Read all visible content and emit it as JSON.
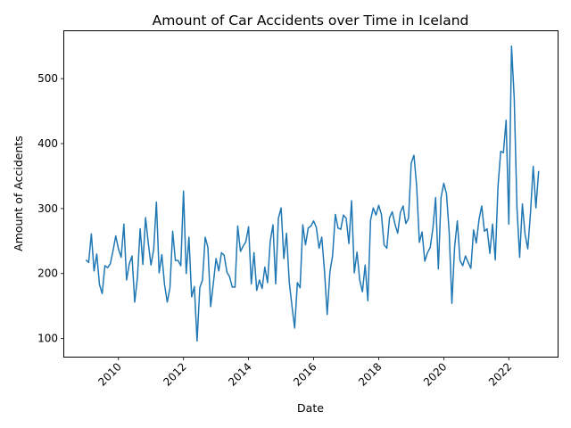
{
  "chart_data": {
    "type": "line",
    "title": "Amount of Car Accidents over Time in Iceland",
    "xlabel": "Date",
    "ylabel": "Amount of Accidents",
    "x_ticks": [
      "2010",
      "2012",
      "2014",
      "2016",
      "2018",
      "2020",
      "2022"
    ],
    "y_ticks": [
      "100",
      "200",
      "300",
      "400",
      "500"
    ],
    "xlim": [
      "2008-05-01",
      "2023-07-01"
    ],
    "ylim": [
      72,
      573
    ],
    "grid": false,
    "line_color": "#1f77b4",
    "x_start": "2009-01",
    "x_step": "1 month",
    "values": [
      221,
      217,
      261,
      204,
      230,
      183,
      169,
      212,
      209,
      215,
      235,
      258,
      238,
      225,
      276,
      190,
      215,
      227,
      156,
      194,
      269,
      214,
      286,
      247,
      213,
      237,
      310,
      201,
      229,
      183,
      156,
      178,
      265,
      220,
      220,
      212,
      327,
      200,
      256,
      164,
      180,
      96,
      178,
      190,
      256,
      240,
      149,
      185,
      223,
      204,
      232,
      228,
      202,
      195,
      179,
      179,
      273,
      234,
      242,
      249,
      272,
      184,
      232,
      174,
      190,
      177,
      210,
      186,
      250,
      275,
      184,
      285,
      301,
      223,
      262,
      187,
      150,
      116,
      186,
      178,
      275,
      244,
      270,
      273,
      281,
      271,
      239,
      256,
      204,
      137,
      202,
      228,
      291,
      270,
      268,
      290,
      285,
      246,
      312,
      201,
      233,
      190,
      172,
      213,
      158,
      282,
      301,
      290,
      305,
      291,
      244,
      239,
      286,
      295,
      276,
      262,
      294,
      304,
      277,
      285,
      370,
      382,
      335,
      248,
      264,
      219,
      232,
      240,
      270,
      317,
      207,
      317,
      339,
      323,
      264,
      154,
      241,
      281,
      220,
      212,
      227,
      217,
      208,
      267,
      247,
      283,
      304,
      265,
      269,
      231,
      276,
      221,
      333,
      388,
      386,
      436,
      276,
      550,
      469,
      302,
      225,
      307,
      260,
      238,
      294,
      365,
      301,
      358
    ]
  }
}
